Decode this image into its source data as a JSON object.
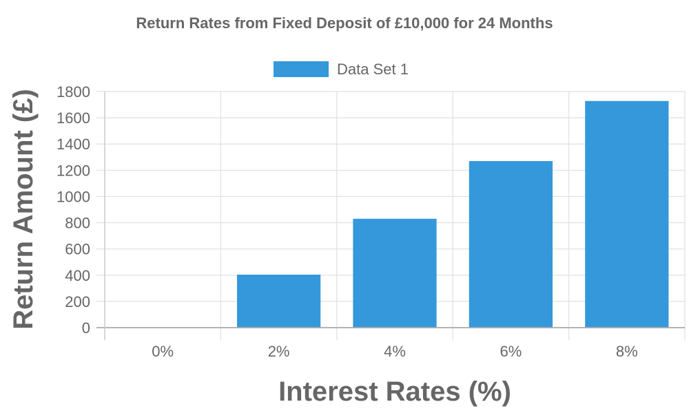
{
  "chart_data": {
    "type": "bar",
    "title": "Return Rates from Fixed Deposit of £10,000 for 24 Months",
    "xlabel": "Interest Rates (%)",
    "ylabel": "Return Amount (£)",
    "categories": [
      "0%",
      "2%",
      "4%",
      "6%",
      "8%"
    ],
    "series": [
      {
        "name": "Data Set 1",
        "values": [
          0,
          404,
          830,
          1270,
          1728
        ],
        "color": "#3498db"
      }
    ],
    "ylim": [
      0,
      1800
    ],
    "yticks": [
      0,
      200,
      400,
      600,
      800,
      1000,
      1200,
      1400,
      1600,
      1800
    ],
    "grid": true,
    "legend_position": "top-center"
  }
}
